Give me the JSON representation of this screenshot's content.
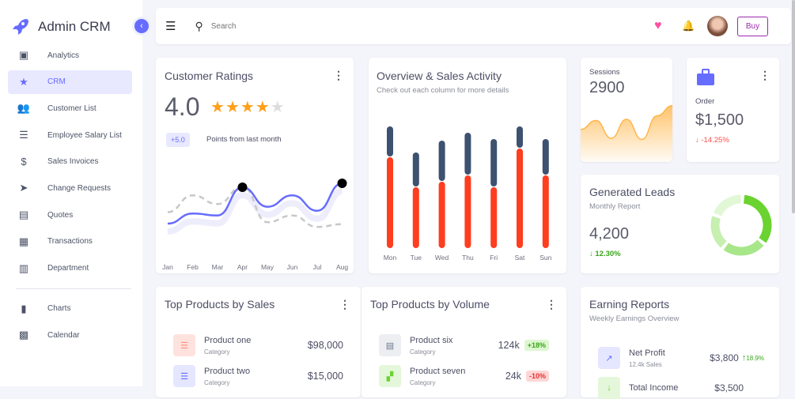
{
  "app": {
    "title": "Admin CRM"
  },
  "sidebar": {
    "items": [
      {
        "label": "Analytics",
        "icon": "inbox-icon",
        "glyph": "▣"
      },
      {
        "label": "CRM",
        "icon": "star-icon",
        "glyph": "★",
        "active": true
      },
      {
        "label": "Customer List",
        "icon": "people-icon",
        "glyph": "👥"
      },
      {
        "label": "Employee Salary List",
        "icon": "list-icon",
        "glyph": "☰"
      },
      {
        "label": "Sales Invoices",
        "icon": "dollar-icon",
        "glyph": "$"
      },
      {
        "label": "Change Requests",
        "icon": "send-icon",
        "glyph": "➤"
      },
      {
        "label": "Quotes",
        "icon": "quote-icon",
        "glyph": "▤"
      },
      {
        "label": "Transactions",
        "icon": "clipboard-icon",
        "glyph": "▦"
      },
      {
        "label": "Department",
        "icon": "building-icon",
        "glyph": "▥"
      }
    ],
    "items2": [
      {
        "label": "Charts",
        "icon": "bar-chart-icon",
        "glyph": "▮"
      },
      {
        "label": "Calendar",
        "icon": "calendar-icon",
        "glyph": "▩"
      }
    ]
  },
  "topbar": {
    "search_placeholder": "Search",
    "buy_label": "Buy"
  },
  "colors": {
    "accent": "#666cff",
    "red": "#ff3d1f",
    "navy": "#3d5170",
    "orange": "#ffb547",
    "green": "#6ad32f"
  },
  "ratings": {
    "title": "Customer Ratings",
    "value": "4.0",
    "stars": 4,
    "max_stars": 5,
    "change": "+5.0",
    "change_label": "Points from last month"
  },
  "overview": {
    "title": "Overview & Sales Activity",
    "subtitle": "Check out each column for more details"
  },
  "sessions": {
    "label": "Sessions",
    "value": "2900"
  },
  "order": {
    "label": "Order",
    "value": "$1,500",
    "change": "-14.25%"
  },
  "leads": {
    "title": "Generated Leads",
    "subtitle": "Monthly Report",
    "value": "4,200",
    "change": "12.30%"
  },
  "top_sales": {
    "title": "Top Products by Sales",
    "items": [
      {
        "name": "Product one",
        "category": "Category",
        "value": "$98,000",
        "bg": "#ffe2de",
        "fg": "#ff8a7a"
      },
      {
        "name": "Product two",
        "category": "Category",
        "value": "$15,000",
        "bg": "#e5e6ff",
        "fg": "#666cff"
      }
    ]
  },
  "top_volume": {
    "title": "Top Products by Volume",
    "items": [
      {
        "name": "Product six",
        "category": "Category",
        "value": "124k",
        "badge": "+18%",
        "bg": "#eceef2",
        "fg": "#6d788d",
        "bbg": "#ddf7d0",
        "bfg": "#3aa51b"
      },
      {
        "name": "Product seven",
        "category": "Category",
        "value": "24k",
        "badge": "-10%",
        "bg": "#e4f7da",
        "fg": "#6ad32f",
        "bbg": "#ffd6d6",
        "bfg": "#e53030"
      }
    ]
  },
  "earnings": {
    "title": "Earning Reports",
    "subtitle": "Weekly Earnings Overview",
    "items": [
      {
        "name": "Net Profit",
        "sub": "12.4k Sales",
        "value": "$3,800",
        "change": "18.9%"
      },
      {
        "name": "Total Income",
        "value": "$3,500"
      }
    ]
  },
  "chart_data": [
    {
      "type": "line",
      "categories": [
        "Jan",
        "Feb",
        "Mar",
        "Apr",
        "May",
        "Jun",
        "Jul",
        "Aug"
      ],
      "series": [
        {
          "values": [
            33,
            48,
            45,
            87,
            58,
            75,
            52,
            93
          ],
          "style": "solid",
          "color": "#666cff"
        },
        {
          "values": [
            50,
            75,
            62,
            88,
            35,
            45,
            28,
            32
          ],
          "style": "dashed",
          "color": "#c8c8c8"
        }
      ],
      "grid": false
    },
    {
      "type": "bar",
      "stacked": true,
      "categories": [
        "Mon",
        "Tue",
        "Wed",
        "Thu",
        "Fri",
        "Sat",
        "Sun"
      ],
      "series": [
        {
          "values": [
            115,
            77,
            84,
            92,
            77,
            126,
            92
          ],
          "color": "#ff3d1f"
        },
        {
          "values": [
            38,
            43,
            51,
            53,
            60,
            27,
            45
          ],
          "color": "#3d5170"
        }
      ],
      "grid": false
    },
    {
      "type": "area",
      "values": [
        55,
        70,
        40,
        72,
        38,
        78,
        95
      ],
      "color": "#ffb547"
    },
    {
      "type": "pie",
      "donut": true,
      "values": [
        35,
        25,
        20,
        20
      ],
      "colors": [
        "#6ad32f",
        "#a8e68a",
        "#c6efb0",
        "#e2f7d6"
      ]
    }
  ]
}
